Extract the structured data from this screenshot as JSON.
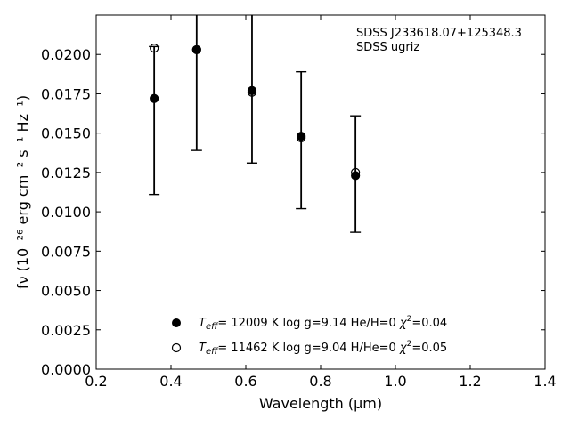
{
  "chart_data": {
    "type": "scatter",
    "xlabel": "Wavelength (μm)",
    "ylabel": "fν (10⁻²⁶ erg cm⁻² s⁻¹ Hz⁻¹)",
    "xlim": [
      0.2,
      1.4
    ],
    "ylim": [
      0.0,
      0.0225
    ],
    "x_ticks": [
      "0.2",
      "0.4",
      "0.6",
      "0.8",
      "1.0",
      "1.2",
      "1.4"
    ],
    "y_ticks": [
      "0.0000",
      "0.0025",
      "0.0050",
      "0.0075",
      "0.0100",
      "0.0125",
      "0.0150",
      "0.0175",
      "0.0200"
    ],
    "annotations": [
      "SDSS J233618.07+125348.3",
      "SDSS ugriz"
    ],
    "observed": {
      "x": [
        0.3551,
        0.4686,
        0.6166,
        0.748,
        0.8932
      ],
      "y": [
        0.0172,
        0.0203,
        0.0177,
        0.0148,
        0.0123
      ],
      "err_low": [
        0.0111,
        0.0139,
        0.0131,
        0.0102,
        0.0087
      ],
      "err_high": [
        0.0205,
        0.0225,
        0.0225,
        0.0189,
        0.0161
      ]
    },
    "series": [
      {
        "marker": "filled-circle",
        "label": "T_eff= 12009 K  log g=9.14  He/H=0  χ²=0.04",
        "label_parts": {
          "t": "T",
          "sub": "eff",
          "rest": "= 12009 K  log g=9.14  He/H=0  ",
          "chi": "χ",
          "sup": "2",
          "end": "=0.04"
        },
        "x": [
          0.3551,
          0.4686,
          0.6166,
          0.748,
          0.8932
        ],
        "y": [
          0.0172,
          0.0203,
          0.0177,
          0.0148,
          0.0123
        ],
        "color": "#000000"
      },
      {
        "marker": "open-circle",
        "label": "T_eff= 11462 K  log g=9.04  H/He=0  χ²=0.05",
        "label_parts": {
          "t": "T",
          "sub": "eff",
          "rest": "= 11462 K  log g=9.04  H/He=0  ",
          "chi": "χ",
          "sup": "2",
          "end": "=0.05"
        },
        "x": [
          0.3551,
          0.4686,
          0.6166,
          0.748,
          0.8932
        ],
        "y": [
          0.0204,
          0.0203,
          0.0176,
          0.0147,
          0.0125
        ],
        "color": "#000000"
      }
    ],
    "legend_position": "lower-center",
    "grid": false
  }
}
